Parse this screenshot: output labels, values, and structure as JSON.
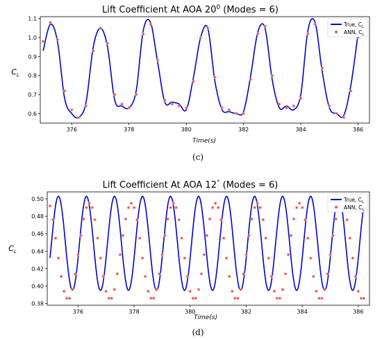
{
  "chart_data": [
    {
      "type": "line",
      "title": "Lift Coefficient At AOA 20",
      "title_superscript": "0",
      "title_suffix": " (Modes = 6)",
      "xlabel": "Time(s)",
      "ylabel": "C",
      "ylabel_sub": "L",
      "xlim": [
        374.9,
        386.4
      ],
      "ylim": [
        0.55,
        1.11
      ],
      "xticks": [
        376,
        378,
        380,
        382,
        384,
        386
      ],
      "yticks": [
        0.6,
        0.7,
        0.8,
        0.9,
        1.0,
        1.1
      ],
      "ytick_labels": [
        "0.6",
        "0.7",
        "0.8",
        "0.9",
        "1.0",
        "1.1"
      ],
      "legend_position": "top-right",
      "caption": "(c)",
      "series": [
        {
          "name": "True, C",
          "name_sub": "L",
          "kind": "line",
          "color": "#0000cc",
          "x": [
            375.0,
            375.25,
            375.5,
            375.75,
            376.0,
            376.25,
            376.5,
            376.75,
            377.0,
            377.25,
            377.5,
            377.75,
            378.0,
            378.25,
            378.5,
            378.75,
            379.0,
            379.25,
            379.5,
            379.75,
            380.0,
            380.25,
            380.5,
            380.75,
            381.0,
            381.25,
            381.5,
            381.75,
            382.0,
            382.25,
            382.5,
            382.75,
            383.0,
            383.25,
            383.5,
            383.75,
            384.0,
            384.25,
            384.5,
            384.75,
            385.0,
            385.25,
            385.5,
            385.75,
            386.0
          ],
          "y": [
            0.93,
            1.07,
            0.98,
            0.68,
            0.6,
            0.58,
            0.66,
            0.95,
            1.05,
            0.95,
            0.67,
            0.64,
            0.63,
            0.72,
            1.04,
            1.08,
            0.87,
            0.66,
            0.66,
            0.65,
            0.62,
            0.79,
            1.0,
            1.05,
            0.77,
            0.62,
            0.61,
            0.6,
            0.61,
            0.8,
            1.03,
            1.05,
            0.78,
            0.63,
            0.64,
            0.62,
            0.7,
            1.04,
            1.08,
            0.82,
            0.63,
            0.6,
            0.59,
            0.75,
            1.02
          ]
        },
        {
          "name": "ANN, C",
          "name_sub": "L",
          "kind": "scatter",
          "color": "#cc2200",
          "x": [
            375.0,
            375.25,
            375.5,
            375.75,
            376.0,
            376.25,
            376.5,
            376.75,
            377.0,
            377.25,
            377.5,
            377.75,
            378.0,
            378.25,
            378.5,
            378.75,
            379.0,
            379.25,
            379.5,
            379.75,
            380.0,
            380.25,
            380.5,
            380.75,
            381.0,
            381.25,
            381.5,
            381.75,
            382.0,
            382.25,
            382.5,
            382.75,
            383.0,
            383.25,
            383.5,
            383.75,
            384.0,
            384.25,
            384.5,
            384.75,
            385.0,
            385.25,
            385.5,
            385.75,
            386.0
          ],
          "y": [
            0.98,
            1.08,
            0.99,
            0.72,
            0.62,
            0.58,
            0.64,
            0.93,
            1.05,
            0.97,
            0.7,
            0.65,
            0.63,
            0.7,
            1.02,
            1.07,
            0.88,
            0.67,
            0.65,
            0.64,
            0.63,
            0.77,
            1.0,
            1.05,
            0.79,
            0.63,
            0.62,
            0.6,
            0.6,
            0.78,
            1.02,
            1.06,
            0.8,
            0.65,
            0.63,
            0.64,
            0.68,
            1.02,
            1.07,
            0.84,
            0.64,
            0.6,
            0.58,
            0.72,
            1.0
          ]
        }
      ]
    },
    {
      "type": "line",
      "title": "Lift Coefficient At AOA 12",
      "title_superscript": "°",
      "title_suffix": " (Modes = 6)",
      "xlabel": "Time(s)",
      "ylabel": "C",
      "ylabel_sub": "L",
      "xlim": [
        374.9,
        386.4
      ],
      "ylim": [
        0.378,
        0.508
      ],
      "xticks": [
        376,
        378,
        380,
        382,
        384,
        386
      ],
      "yticks": [
        0.38,
        0.4,
        0.42,
        0.44,
        0.46,
        0.48,
        0.5
      ],
      "ytick_labels": [
        "0.38",
        "0.40",
        "0.42",
        "0.44",
        "0.46",
        "0.48",
        "0.50"
      ],
      "legend_position": "top-right",
      "caption": "(d)",
      "series": [
        {
          "name": "True, C",
          "name_sub": "L",
          "kind": "sine",
          "color": "#0000cc",
          "period": 1.0,
          "phase_peak": 376.3,
          "center": 0.449,
          "amplitude": 0.054,
          "x_start": 375.0,
          "x_end": 386.2
        },
        {
          "name": "ANN, C",
          "name_sub": "L",
          "kind": "scatter",
          "color": "#cc2200",
          "x": [
            375.0,
            375.1,
            375.2,
            375.3,
            375.4,
            375.5,
            375.6,
            375.7,
            375.8,
            375.9,
            376.0,
            376.1,
            376.2,
            376.3,
            376.4,
            376.5,
            376.6,
            376.7,
            376.8,
            376.9,
            377.0,
            377.1,
            377.2,
            377.3,
            377.4,
            377.5,
            377.6,
            377.7,
            377.8,
            377.9,
            378.0,
            378.1,
            378.2,
            378.3,
            378.4,
            378.5,
            378.6,
            378.7,
            378.8,
            378.9,
            379.0,
            379.1,
            379.2,
            379.3,
            379.4,
            379.5,
            379.6,
            379.7,
            379.8,
            379.9,
            380.0,
            380.1,
            380.2,
            380.3,
            380.4,
            380.5,
            380.6,
            380.7,
            380.8,
            380.9,
            381.0,
            381.1,
            381.2,
            381.3,
            381.4,
            381.5,
            381.6,
            381.7,
            381.8,
            381.9,
            382.0,
            382.1,
            382.2,
            382.3,
            382.4,
            382.5,
            382.6,
            382.7,
            382.8,
            382.9,
            383.0,
            383.1,
            383.2,
            383.3,
            383.4,
            383.5,
            383.6,
            383.7,
            383.8,
            383.9,
            384.0,
            384.1,
            384.2,
            384.3,
            384.4,
            384.5,
            384.6,
            384.7,
            384.8,
            384.9,
            385.0,
            385.1,
            385.2,
            385.3,
            385.4,
            385.5,
            385.6,
            385.7,
            385.8,
            385.9,
            386.0,
            386.1,
            386.2
          ],
          "y": [
            0.492,
            0.476,
            0.455,
            0.432,
            0.411,
            0.394,
            0.386,
            0.386,
            0.396,
            0.414,
            0.436,
            0.458,
            0.477,
            0.49,
            0.495,
            0.49,
            0.476,
            0.455,
            0.432,
            0.411,
            0.394,
            0.386,
            0.386,
            0.396,
            0.414,
            0.436,
            0.458,
            0.477,
            0.49,
            0.495,
            0.49,
            0.476,
            0.455,
            0.432,
            0.411,
            0.394,
            0.386,
            0.386,
            0.396,
            0.414,
            0.436,
            0.458,
            0.477,
            0.49,
            0.495,
            0.49,
            0.476,
            0.455,
            0.432,
            0.411,
            0.394,
            0.386,
            0.386,
            0.396,
            0.414,
            0.436,
            0.458,
            0.477,
            0.49,
            0.495,
            0.49,
            0.476,
            0.455,
            0.432,
            0.411,
            0.394,
            0.386,
            0.386,
            0.396,
            0.414,
            0.436,
            0.458,
            0.477,
            0.49,
            0.495,
            0.49,
            0.476,
            0.455,
            0.432,
            0.411,
            0.394,
            0.386,
            0.386,
            0.396,
            0.414,
            0.436,
            0.458,
            0.477,
            0.49,
            0.495,
            0.49,
            0.476,
            0.455,
            0.432,
            0.411,
            0.394,
            0.386,
            0.386,
            0.396,
            0.414,
            0.436,
            0.458,
            0.477,
            0.49,
            0.495,
            0.49,
            0.476,
            0.455,
            0.432,
            0.411,
            0.394,
            0.386,
            0.386
          ]
        }
      ]
    }
  ]
}
